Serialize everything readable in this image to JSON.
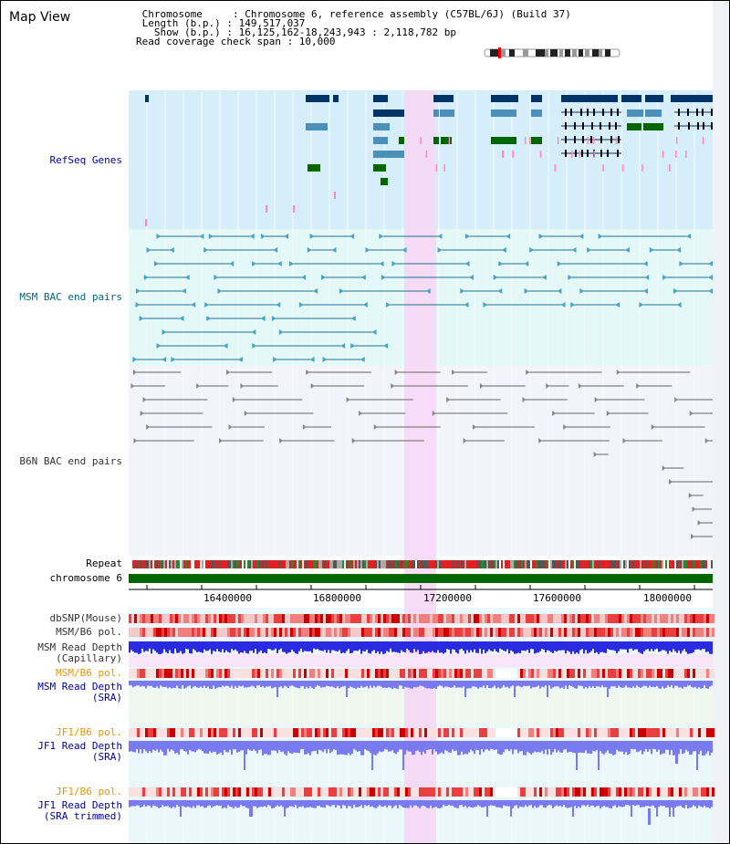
{
  "window": {
    "title": "Map View"
  },
  "header": {
    "lines": [
      " Chromosome     : Chromosome 6, reference assembly (C57BL/6J) (Build 37)",
      " Length (b.p.) : 149,517,037",
      "   Show (b.p.) : 16,125,162-18,243,943 : 2,118,782 bp",
      "Read coverage check span : 10,000"
    ]
  },
  "tracks": {
    "refseq": "RefSeq Genes",
    "msm_bac": "MSM BAC end pairs",
    "b6n_bac": "B6N BAC end pairs",
    "repeat": "Repeat",
    "chromosome": "chromosome 6",
    "dbsnp": "dbSNP(Mouse)",
    "msm_b6_pol_1": "MSM/B6 pol.",
    "msm_depth_cap_1": "MSM Read Depth",
    "msm_depth_cap_2": "(Capillary)",
    "msm_b6_pol_2": "MSM/B6 pol.",
    "msm_depth_sra_1": "MSM Read Depth",
    "msm_depth_sra_2": "(SRA)",
    "jf1_b6_pol_1": "JF1/B6 pol.",
    "jf1_depth_sra_1": "JF1 Read Depth",
    "jf1_depth_sra_2": "(SRA)",
    "jf1_b6_pol_2": "JF1/B6 pol.",
    "jf1_depth_trim_1": "JF1 Read Depth",
    "jf1_depth_trim_2": "(SRA trimmed)"
  },
  "axis": {
    "ticks": [
      "16400000",
      "16800000",
      "17200000",
      "17600000",
      "18000000"
    ]
  },
  "colors": {
    "refseq_bg": "#d6eef9",
    "msm_bg": "#e4f8f8",
    "b6n_bg": "#f3f3fb",
    "highlight": "#f8d6f4",
    "gene_dark": "#003366",
    "gene_mid": "#4a90b8",
    "gene_green": "#006600",
    "msm_line": "#1f6f8b",
    "b6n_line": "#666666",
    "snp_red": "#e83030",
    "depth_blue": "#2a2ae0",
    "depth_light": "#7a7af0",
    "label_blue": "#000099",
    "label_orange": "#e69500",
    "label_teal": "#006680"
  }
}
